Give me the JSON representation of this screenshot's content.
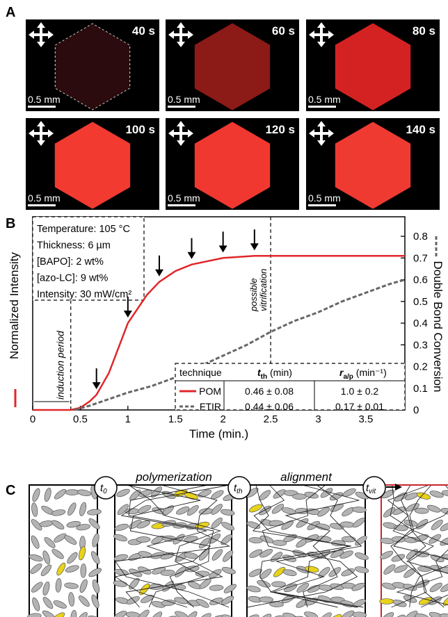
{
  "panel_a": {
    "label": "A",
    "images": [
      {
        "time": "40 s",
        "scale": "0.5 mm",
        "color": "#2b0b0d"
      },
      {
        "time": "60 s",
        "scale": "0.5 mm",
        "color": "#8c1a16"
      },
      {
        "time": "80 s",
        "scale": "0.5 mm",
        "color": "#d42222"
      },
      {
        "time": "100 s",
        "scale": "0.5 mm",
        "color": "#f23a30"
      },
      {
        "time": "120 s",
        "scale": "0.5 mm",
        "color": "#f03830"
      },
      {
        "time": "140 s",
        "scale": "0.5 mm",
        "color": "#ef3a32"
      }
    ]
  },
  "chart_data": {
    "type": "line",
    "panel_label": "B",
    "x_label": "Time (min.)",
    "y_label": "Normalized Intensity",
    "y2_label": "Double Bond Conversion",
    "xlim": [
      0,
      3.91
    ],
    "xticks": [
      0,
      0.5,
      1,
      1.5,
      2,
      2.5,
      3,
      3.5
    ],
    "ylim": [
      0,
      0.89
    ],
    "y2lim": [
      0,
      0.89
    ],
    "y2ticks": [
      0,
      0.1,
      0.2,
      0.3,
      0.4,
      0.5,
      0.6,
      0.7,
      0.8
    ],
    "vlines": [
      0.4,
      2.5
    ],
    "arrows_x": [
      0.67,
      1.0,
      1.33,
      1.67,
      2.0,
      2.33
    ],
    "annotations": [
      "induction period",
      "possible",
      "vitrification"
    ],
    "info": [
      "Temperature: 105 °C",
      "Thickness: 6 µm",
      "[BAPO]: 2 wt%",
      "[azo-LC]: 9 wt%",
      "Intensity: 30 mW/cm²"
    ],
    "series": [
      {
        "name": "POM",
        "color": "#e0262a",
        "dash": false,
        "x": [
          0,
          0.4,
          0.5,
          0.6,
          0.67,
          0.8,
          1.0,
          1.2,
          1.33,
          1.5,
          1.67,
          2.0,
          2.33,
          2.5,
          3.0,
          3.5,
          3.91
        ],
        "values": [
          0,
          0,
          0.01,
          0.04,
          0.07,
          0.17,
          0.4,
          0.53,
          0.59,
          0.64,
          0.67,
          0.7,
          0.71,
          0.71,
          0.71,
          0.71,
          0.71
        ]
      },
      {
        "name": "FTIR",
        "color": "#666666",
        "dash": true,
        "axis": "y2",
        "x": [
          0.44,
          0.6,
          0.8,
          1.0,
          1.25,
          1.5,
          1.75,
          2.0,
          2.25,
          2.5,
          2.75,
          3.0,
          3.25,
          3.5,
          3.75,
          3.91
        ],
        "values": [
          0,
          0.02,
          0.05,
          0.08,
          0.11,
          0.15,
          0.2,
          0.25,
          0.3,
          0.36,
          0.41,
          0.45,
          0.5,
          0.54,
          0.58,
          0.6
        ]
      }
    ],
    "table": {
      "header": [
        {
          "text": "technique"
        },
        {
          "symbol": "t",
          "sub": "th",
          "unit": " (min)"
        },
        {
          "symbol": "r",
          "sub": "a/p",
          "unit": " (min⁻¹)"
        }
      ],
      "rows": [
        [
          "0.46 ± 0.08",
          "1.0 ± 0.2"
        ],
        [
          "0.44 ± 0.06",
          "0.17 ± 0.01"
        ]
      ]
    }
  },
  "panel_c": {
    "label": "C",
    "phases": [
      "polymerization",
      "alignment"
    ],
    "times": [
      {
        "symbol": "t",
        "sub": "0"
      },
      {
        "symbol": "t",
        "sub": "th"
      },
      {
        "symbol": "t",
        "sub": "vit"
      }
    ]
  }
}
